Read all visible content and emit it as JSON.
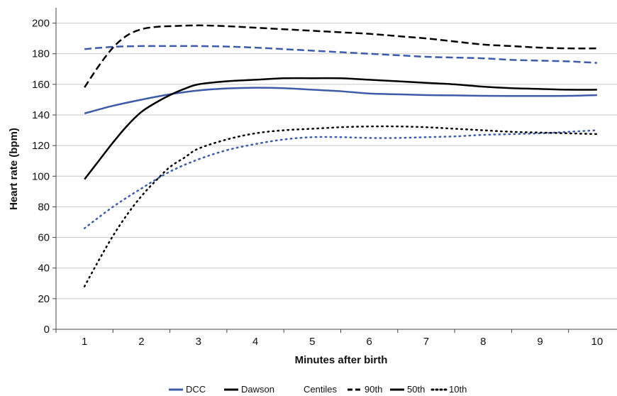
{
  "chart_data": {
    "type": "line",
    "title": "",
    "xlabel": "Minutes after birth",
    "ylabel": "Heart rate (bpm)",
    "xlim": [
      0.5,
      10.5
    ],
    "ylim": [
      0,
      210
    ],
    "xticks": [
      1,
      2,
      3,
      4,
      5,
      6,
      7,
      8,
      9,
      10
    ],
    "yticks": [
      0,
      20,
      40,
      60,
      80,
      100,
      120,
      140,
      160,
      180,
      200
    ],
    "grid": "horizontal",
    "legend_position": "bottom",
    "legend": {
      "series_items": [
        "DCC",
        "Dawson"
      ],
      "centiles_label": "Centiles",
      "centile_items": [
        "90th",
        "50th",
        "10th"
      ]
    },
    "colors": {
      "DCC": "#3d5ba9",
      "Dawson": "#000000"
    },
    "series": [
      {
        "name": "DCC",
        "centile": "90th",
        "x": [
          1,
          1.5,
          2,
          2.5,
          3,
          3.5,
          4,
          4.5,
          5,
          5.5,
          6,
          6.5,
          7,
          7.5,
          8,
          8.5,
          9,
          9.5,
          10
        ],
        "values": [
          183,
          184.5,
          185,
          185,
          185,
          184.7,
          184,
          183,
          182,
          181,
          180,
          179,
          178,
          177.5,
          177,
          176,
          175.5,
          175,
          174
        ]
      },
      {
        "name": "DCC",
        "centile": "50th",
        "x": [
          1,
          1.5,
          2,
          2.5,
          3,
          3.5,
          4,
          4.5,
          5,
          5.5,
          6,
          6.5,
          7,
          7.5,
          8,
          8.5,
          9,
          9.5,
          10
        ],
        "values": [
          141,
          146,
          150,
          153.5,
          156,
          157.3,
          157.8,
          157.5,
          156.5,
          155.5,
          154,
          153.5,
          153,
          152.8,
          152.5,
          152.4,
          152.4,
          152.5,
          153
        ]
      },
      {
        "name": "DCC",
        "centile": "10th",
        "x": [
          1,
          1.5,
          2,
          2.5,
          3,
          3.5,
          4,
          4.5,
          5,
          5.5,
          6,
          6.5,
          7,
          7.5,
          8,
          8.5,
          9,
          9.5,
          10
        ],
        "values": [
          66,
          80,
          92,
          103,
          111,
          117,
          121,
          124,
          125.5,
          125.5,
          125,
          125,
          125.5,
          126,
          127,
          127.5,
          128,
          129,
          130
        ]
      },
      {
        "name": "Dawson",
        "centile": "90th",
        "x": [
          1,
          1.25,
          1.5,
          1.75,
          2,
          2.25,
          2.5,
          3,
          3.5,
          4,
          4.5,
          5,
          5.5,
          6,
          6.5,
          7,
          7.5,
          8,
          8.5,
          9,
          9.5,
          10
        ],
        "values": [
          158,
          172,
          184,
          192,
          196,
          197.5,
          198,
          198.5,
          198,
          197,
          196,
          195,
          194,
          193,
          191.5,
          190,
          188,
          186,
          185,
          184,
          183.5,
          183.5
        ]
      },
      {
        "name": "Dawson",
        "centile": "50th",
        "x": [
          1,
          1.25,
          1.5,
          1.75,
          2,
          2.25,
          2.5,
          2.75,
          3,
          3.5,
          4,
          4.5,
          5,
          5.5,
          6,
          6.5,
          7,
          7.5,
          8,
          8.5,
          9,
          9.5,
          10
        ],
        "values": [
          98,
          110,
          122,
          133,
          142,
          148,
          153,
          157,
          160,
          162,
          163,
          164,
          164,
          164,
          163,
          162,
          161,
          160,
          158.5,
          157.5,
          157,
          156.5,
          156.5
        ]
      },
      {
        "name": "Dawson",
        "centile": "10th",
        "x": [
          1,
          1.25,
          1.5,
          1.75,
          2,
          2.25,
          2.5,
          2.75,
          3,
          3.5,
          4,
          4.5,
          5,
          5.5,
          6,
          6.5,
          7,
          7.5,
          8,
          8.5,
          9,
          9.5,
          10
        ],
        "values": [
          28,
          45,
          61,
          75,
          87,
          97,
          106,
          112,
          118,
          124,
          128,
          130,
          131,
          132,
          132.5,
          132.5,
          132,
          131,
          130,
          129,
          128.5,
          128,
          127.5
        ]
      }
    ]
  }
}
